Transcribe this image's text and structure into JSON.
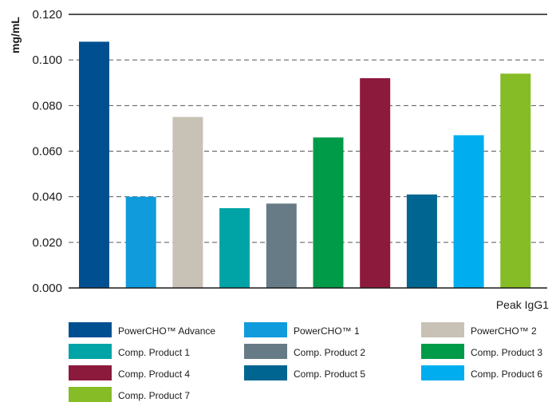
{
  "chart_data": {
    "type": "bar",
    "ylabel": "mg/mL",
    "xlabel": "Peak IgG1",
    "ylim": [
      0,
      0.12
    ],
    "yticks": [
      "0.000",
      "0.020",
      "0.040",
      "0.060",
      "0.080",
      "0.100",
      "0.120"
    ],
    "grid": "dashed horizontal",
    "legend_position": "bottom",
    "series": [
      {
        "name": "PowerCHO™ Advance",
        "value": 0.108,
        "color": "#004f91"
      },
      {
        "name": "PowerCHO™ 1",
        "value": 0.04,
        "color": "#0f9bdc"
      },
      {
        "name": "PowerCHO™ 2",
        "value": 0.075,
        "color": "#c8c2b6"
      },
      {
        "name": "Comp. Product 1",
        "value": 0.035,
        "color": "#00a3a6"
      },
      {
        "name": "Comp. Product 2",
        "value": 0.037,
        "color": "#667b85"
      },
      {
        "name": "Comp. Product 3",
        "value": 0.066,
        "color": "#009b48"
      },
      {
        "name": "Comp. Product 4",
        "value": 0.092,
        "color": "#8c1a3d"
      },
      {
        "name": "Comp. Product 5",
        "value": 0.041,
        "color": "#006591"
      },
      {
        "name": "Comp. Product 6",
        "value": 0.067,
        "color": "#00aeef"
      },
      {
        "name": "Comp. Product 7",
        "value": 0.094,
        "color": "#86bc25"
      }
    ]
  }
}
